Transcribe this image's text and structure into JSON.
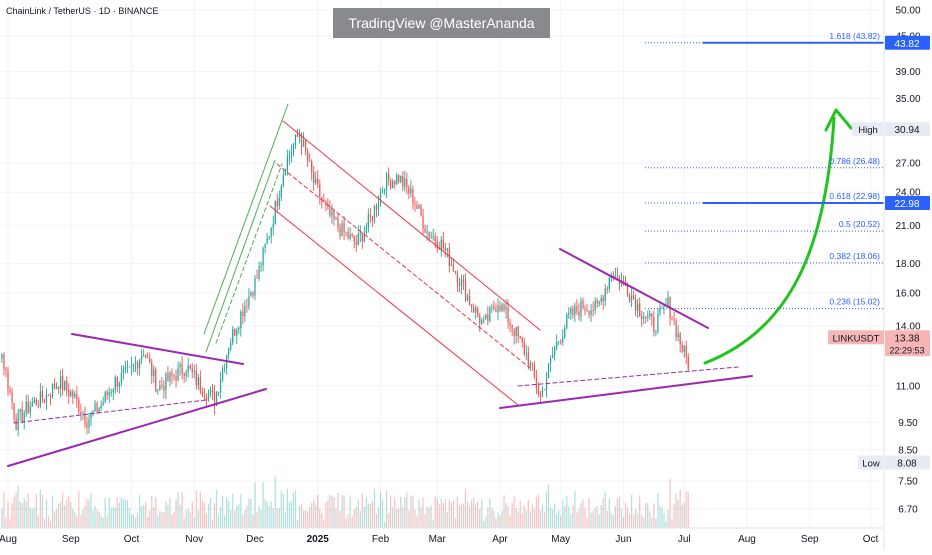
{
  "header": {
    "symbol_line": "ChainLink / TetherUS · 1D · BINANCE"
  },
  "watermark": {
    "text": "TradingView @MasterAnanda"
  },
  "colors": {
    "up": "#26a69a",
    "down": "#ef5350",
    "fib_line": "#2962ff",
    "fib_text": "#2962ff",
    "trend_purple": "#9c27b0",
    "channel_red": "#f23645",
    "wedge_green": "#4caf50",
    "arrow_green": "#22c31e",
    "price_badge": "#f7b6b6"
  },
  "chart_data": {
    "type": "candlestick",
    "title": "ChainLink / TetherUS · 1D · BINANCE",
    "y_scale": "log",
    "ylim": [
      6.2,
      52
    ],
    "x_tick_labels": [
      "Aug",
      "Sep",
      "Oct",
      "Nov",
      "Dec",
      "2025",
      "Feb",
      "Mar",
      "Apr",
      "May",
      "Jun",
      "Jul",
      "Aug",
      "Sep",
      "Oct"
    ],
    "y_tick_labels": [
      "50.00",
      "45.00",
      "39.00",
      "35.00",
      "27.00",
      "24.00",
      "21.00",
      "18.00",
      "16.00",
      "14.00",
      "11.00",
      "9.50",
      "8.50",
      "7.50",
      "6.70"
    ],
    "y_tick_values": [
      50,
      45,
      39,
      35,
      27,
      24,
      21,
      18,
      16,
      14,
      11,
      9.5,
      8.5,
      7.5,
      6.7
    ],
    "price_path": [
      [
        "2024-07-15",
        14.0
      ],
      [
        "2024-07-22",
        13.6
      ],
      [
        "2024-07-29",
        12.5
      ],
      [
        "2024-08-05",
        9.5
      ],
      [
        "2024-08-12",
        10.2
      ],
      [
        "2024-08-19",
        10.5
      ],
      [
        "2024-08-26",
        11.2
      ],
      [
        "2024-09-02",
        10.6
      ],
      [
        "2024-09-09",
        9.6
      ],
      [
        "2024-09-16",
        10.2
      ],
      [
        "2024-09-23",
        11.2
      ],
      [
        "2024-09-30",
        11.6
      ],
      [
        "2024-10-07",
        12.7
      ],
      [
        "2024-10-14",
        10.9
      ],
      [
        "2024-10-21",
        11.4
      ],
      [
        "2024-10-28",
        11.9
      ],
      [
        "2024-11-04",
        11.0
      ],
      [
        "2024-11-11",
        10.4
      ],
      [
        "2024-11-18",
        13.0
      ],
      [
        "2024-11-25",
        15.0
      ],
      [
        "2024-12-02",
        17.0
      ],
      [
        "2024-12-09",
        21.0
      ],
      [
        "2024-12-16",
        27.0
      ],
      [
        "2024-12-23",
        30.5
      ],
      [
        "2024-12-30",
        25.0
      ],
      [
        "2025-01-06",
        22.0
      ],
      [
        "2025-01-13",
        20.5
      ],
      [
        "2025-01-20",
        19.5
      ],
      [
        "2025-01-27",
        21.5
      ],
      [
        "2025-02-03",
        25.0
      ],
      [
        "2025-02-10",
        25.5
      ],
      [
        "2025-02-17",
        23.5
      ],
      [
        "2025-02-24",
        20.5
      ],
      [
        "2025-03-03",
        19.5
      ],
      [
        "2025-03-10",
        17.5
      ],
      [
        "2025-03-17",
        15.5
      ],
      [
        "2025-03-24",
        14.0
      ],
      [
        "2025-03-31",
        15.5
      ],
      [
        "2025-04-07",
        14.0
      ],
      [
        "2025-04-14",
        12.5
      ],
      [
        "2025-04-21",
        10.5
      ],
      [
        "2025-04-28",
        12.8
      ],
      [
        "2025-05-05",
        14.5
      ],
      [
        "2025-05-12",
        15.2
      ],
      [
        "2025-05-19",
        15.0
      ],
      [
        "2025-05-26",
        17.4
      ],
      [
        "2025-06-02",
        16.5
      ],
      [
        "2025-06-09",
        15.0
      ],
      [
        "2025-06-16",
        14.0
      ],
      [
        "2025-06-23",
        15.3
      ],
      [
        "2025-06-30",
        12.8
      ],
      [
        "2025-07-07",
        11.1
      ],
      [
        "2025-07-14",
        13.38
      ]
    ],
    "fib_levels": [
      {
        "label": "1.618 (43.82)",
        "value": 43.82
      },
      {
        "label": "0.786 (26.48)",
        "value": 26.48
      },
      {
        "label": "0.618 (22.98)",
        "value": 22.98
      },
      {
        "label": "0.5 (20.52)",
        "value": 20.52
      },
      {
        "label": "0.382 (18.06)",
        "value": 18.06
      },
      {
        "label": "0.236 (15.02)",
        "value": 15.02
      }
    ],
    "price_badges": [
      {
        "label": "",
        "value_text": "43.82",
        "value": 43.82
      },
      {
        "label": "High",
        "value_text": "30.94",
        "value": 30.94
      },
      {
        "label": "",
        "value_text": "22.98",
        "value": 22.98
      },
      {
        "label": "LINKUSDT",
        "value_text": "13.38",
        "sub_text": "22:29:53",
        "value": 13.38
      },
      {
        "label": "Low",
        "value_text": "8.08",
        "value": 8.08
      }
    ]
  }
}
